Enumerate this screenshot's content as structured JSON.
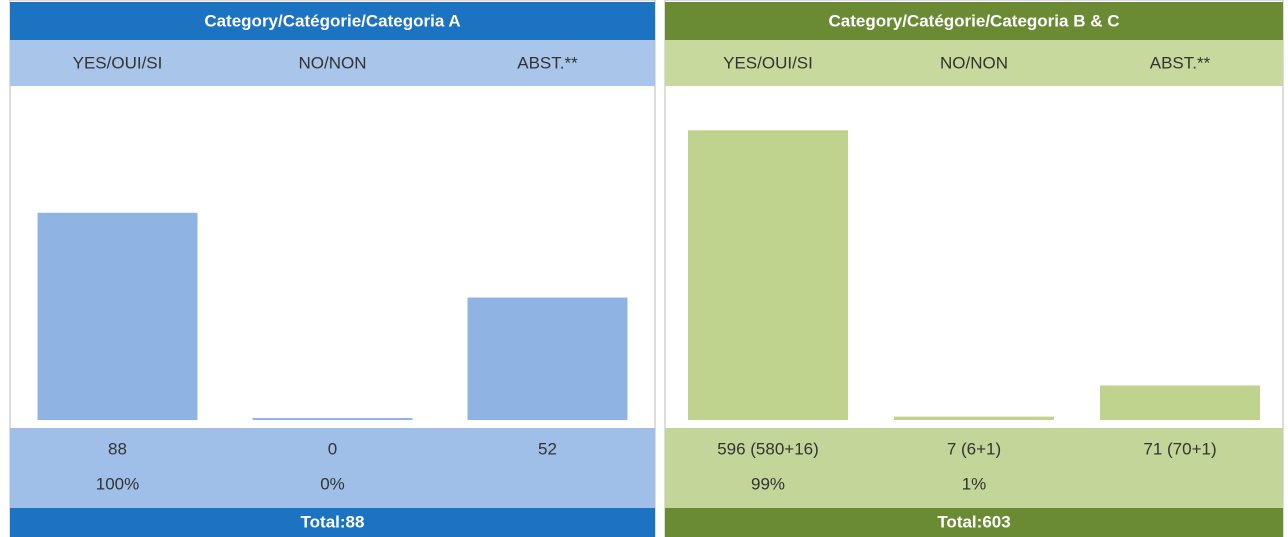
{
  "chart_data": [
    {
      "type": "bar",
      "title": "Category/Catégorie/Categoria A",
      "categories": [
        "YES/OUI/SI",
        "NO/NON",
        "ABST.**"
      ],
      "values": [
        88,
        0,
        52
      ],
      "percentages": [
        "100%",
        "0%",
        null
      ],
      "total": "Total:88",
      "color": "#8fb4e3",
      "ylim": [
        0,
        141
      ]
    },
    {
      "type": "bar",
      "title": "Category/Catégorie/Categoria B & C",
      "categories": [
        "YES/OUI/SI",
        "NO/NON",
        "ABST.**"
      ],
      "values": [
        596,
        7,
        71
      ],
      "value_labels": [
        "596 (580+16)",
        "7 (6+1)",
        "71 (70+1)"
      ],
      "percentages": [
        "99%",
        "1%",
        null
      ],
      "total": "Total:603",
      "color": "#bfd38f",
      "ylim": [
        0,
        683
      ]
    }
  ]
}
